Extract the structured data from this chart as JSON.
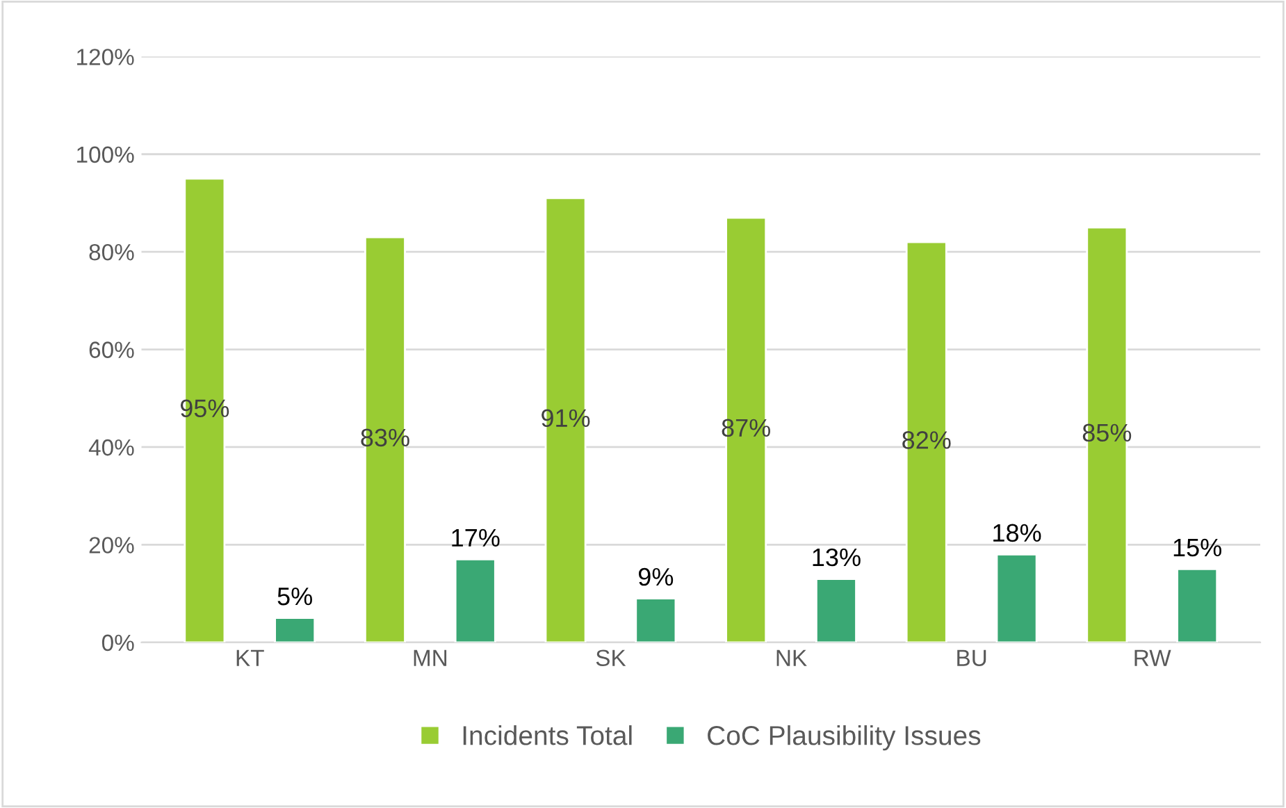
{
  "chart_data": {
    "type": "bar",
    "categories": [
      "KT",
      "MN",
      "SK",
      "NK",
      "BU",
      "RW"
    ],
    "series": [
      {
        "name": "Incidents Total",
        "color": "#99cc33",
        "values": [
          95,
          83,
          91,
          87,
          82,
          85
        ],
        "value_labels": [
          "95%",
          "83%",
          "91%",
          "87%",
          "82%",
          "85%"
        ]
      },
      {
        "name": "CoC Plausibility Issues",
        "color": "#3aa874",
        "values": [
          5,
          17,
          9,
          13,
          18,
          15
        ],
        "value_labels": [
          "5%",
          "17%",
          "9%",
          "13%",
          "18%",
          "15%"
        ]
      }
    ],
    "ylim": [
      0,
      120
    ],
    "yticks": [
      {
        "value": 0,
        "label": "0%"
      },
      {
        "value": 20,
        "label": "20%"
      },
      {
        "value": 40,
        "label": "40%"
      },
      {
        "value": 60,
        "label": "60%"
      },
      {
        "value": 80,
        "label": "80%"
      },
      {
        "value": 100,
        "label": "100%"
      },
      {
        "value": 120,
        "label": "120%"
      }
    ],
    "grid": "y",
    "legend": "bottom"
  }
}
